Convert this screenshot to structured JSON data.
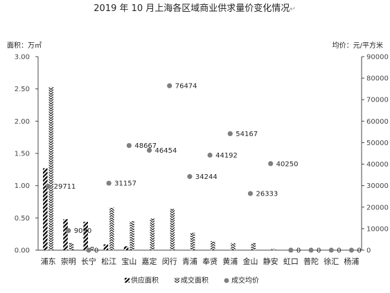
{
  "chart_data": {
    "type": "bar",
    "title": "2019 年 10 月上海各区域商业供求量价变化情况",
    "title_mark": "↵",
    "ylabel_left": "面积：万㎡",
    "ylabel_right": "均价：元/平方米",
    "ylim_left": [
      0,
      3
    ],
    "ylim_right": [
      0,
      90000
    ],
    "yticks_left": [
      "0.00",
      "0.50",
      "1.00",
      "1.50",
      "2.00",
      "2.50",
      "3.00"
    ],
    "yticks_right": [
      "0",
      "10000",
      "20000",
      "30000",
      "40000",
      "50000",
      "60000",
      "70000",
      "80000",
      "90000"
    ],
    "grid": false,
    "legend": "bottom",
    "categories": [
      "浦东",
      "崇明",
      "长宁",
      "松江",
      "宝山",
      "嘉定",
      "闵行",
      "青浦",
      "奉贤",
      "黄浦",
      "金山",
      "静安",
      "虹口",
      "普陀",
      "徐汇",
      "杨浦"
    ],
    "series": [
      {
        "name": "供应面积",
        "type": "bar",
        "axis": "left",
        "values": [
          1.27,
          0.48,
          0.44,
          0.09,
          0.06,
          0,
          0,
          0,
          0,
          0,
          0,
          0,
          0,
          0,
          0,
          0
        ]
      },
      {
        "name": "成交面积",
        "type": "bar",
        "axis": "left",
        "values": [
          2.53,
          0.11,
          0.05,
          0.66,
          0.45,
          0.49,
          0.64,
          0.27,
          0.14,
          0.11,
          0.11,
          0.02,
          0,
          0,
          0,
          0
        ]
      },
      {
        "name": "成交均价",
        "type": "scatter",
        "axis": "right",
        "values": [
          29711,
          9090,
          0,
          31157,
          48667,
          46454,
          76474,
          34244,
          44192,
          54167,
          26333,
          40250,
          0,
          0,
          0,
          0
        ],
        "labels": [
          "29711",
          "9090",
          "0",
          "31157",
          "48667",
          "46454",
          "76474",
          "34244",
          "44192",
          "54167",
          "26333",
          "40250",
          "0",
          "0",
          "0",
          "0"
        ]
      }
    ],
    "colors": {
      "axis": "#444444",
      "bar": "#000000",
      "point": "#7f7f7f"
    }
  }
}
